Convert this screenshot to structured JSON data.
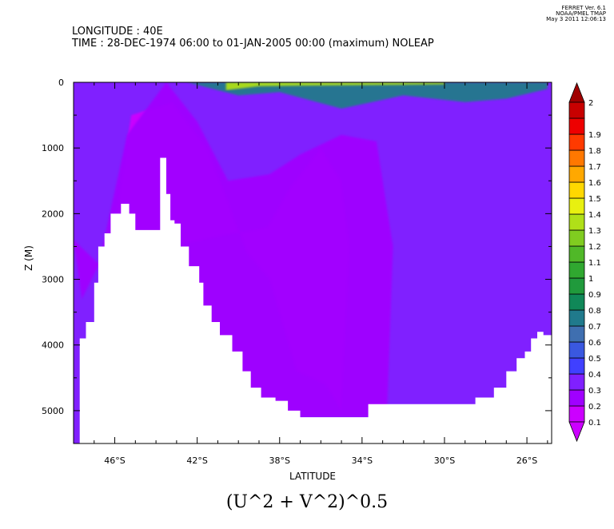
{
  "header": {
    "longitude": "LONGITUDE : 40E",
    "time": "TIME : 28-DEC-1974 06:00 to 01-JAN-2005 00:00 (maximum) NOLEAP"
  },
  "credits": {
    "line1": "FERRET Ver. 6.1",
    "line2": "NOAA/PMEL TMAP",
    "line3": "May  3 2011 12:06:13"
  },
  "bottom_title": "(U^2 + V^2)^0.5",
  "chart_data": {
    "type": "heatmap",
    "title": "(U^2 + V^2)^0.5",
    "xlabel": "LATITUDE",
    "ylabel": "Z (M)",
    "xlim": [
      -48,
      -24.8
    ],
    "ylim": [
      5500,
      0
    ],
    "x_ticks": [
      {
        "value": -46,
        "label": "46°S"
      },
      {
        "value": -42,
        "label": "42°S"
      },
      {
        "value": -38,
        "label": "38°S"
      },
      {
        "value": -34,
        "label": "34°S"
      },
      {
        "value": -30,
        "label": "30°S"
      },
      {
        "value": -26,
        "label": "26°S"
      }
    ],
    "y_ticks": [
      {
        "value": 0,
        "label": "0"
      },
      {
        "value": 1000,
        "label": "1000"
      },
      {
        "value": 2000,
        "label": "2000"
      },
      {
        "value": 3000,
        "label": "3000"
      },
      {
        "value": 4000,
        "label": "4000"
      },
      {
        "value": 5000,
        "label": "5000"
      }
    ],
    "colorbar": {
      "levels": [
        0.1,
        0.2,
        0.3,
        0.4,
        0.5,
        0.6,
        0.7,
        0.8,
        0.9,
        1,
        1.1,
        1.2,
        1.3,
        1.4,
        1.5,
        1.6,
        1.7,
        1.8,
        1.9,
        2
      ],
      "labels": [
        "0.1",
        "0.2",
        "0.3",
        "0.4",
        "0.5",
        "0.6",
        "0.7",
        "0.8",
        "0.9",
        "1",
        "1.1",
        "1.2",
        "1.3",
        "1.4",
        "1.5",
        "1.6",
        "1.7",
        "1.8",
        "1.9",
        "2"
      ],
      "colors": [
        "#cc00ff",
        "#a000ff",
        "#8020ff",
        "#4040ff",
        "#3a58e0",
        "#3f6fb0",
        "#207a8c",
        "#108858",
        "#209a3c",
        "#30a830",
        "#50b828",
        "#80cc20",
        "#b0e018",
        "#e8f010",
        "#ffd800",
        "#ffa800",
        "#ff7800",
        "#ff3a00",
        "#ee0000",
        "#c80000"
      ],
      "under_color": "#cc00ff",
      "over_color": "#a00000"
    },
    "bathymetry": {
      "lat": [
        -48,
        -47.7,
        -47.4,
        -47.0,
        -46.8,
        -46.5,
        -46.2,
        -45.7,
        -45.3,
        -45.0,
        -44.3,
        -43.8,
        -43.5,
        -43.3,
        -43.1,
        -42.8,
        -42.4,
        -41.9,
        -41.7,
        -41.3,
        -40.9,
        -40.3,
        -39.8,
        -39.4,
        -38.9,
        -38.2,
        -37.6,
        -37.0,
        -36.3,
        -35.8,
        -35.4,
        -35.0,
        -34.5,
        -34.0,
        -33.7,
        -33.0,
        -30.0,
        -28.5,
        -27.6,
        -27.0,
        -26.5,
        -26.1,
        -25.8,
        -25.5,
        -25.2,
        -24.8
      ],
      "depth": [
        5500,
        3900,
        3650,
        3050,
        2500,
        2300,
        2000,
        1850,
        2000,
        2250,
        2250,
        1150,
        1700,
        2100,
        2150,
        2500,
        2800,
        3050,
        3400,
        3650,
        3850,
        4100,
        4400,
        4650,
        4800,
        4850,
        5000,
        5100,
        5100,
        5100,
        5100,
        5100,
        5100,
        5100,
        4900,
        4900,
        4900,
        4800,
        4650,
        4400,
        4200,
        4100,
        3900,
        3800,
        3850,
        5500
      ]
    },
    "field_layers": [
      {
        "level": 0.15,
        "description": "deep magenta core",
        "lat": [
          -46.3,
          -45.2,
          -43.2,
          -41.5,
          -40.5,
          -39.6,
          -38.5,
          -37.2,
          -35.8,
          -35.0,
          -34.6,
          -35.0,
          -36.0,
          -37.5,
          -38.6
        ],
        "depth": [
          2700,
          500,
          300,
          1000,
          1800,
          2600,
          3000,
          4400,
          4600,
          5000,
          2500,
          1500,
          1000,
          1600,
          2200
        ]
      },
      {
        "level": 0.25,
        "description": "violet band",
        "lat": [
          -48,
          -47.6,
          -46.8,
          -45.4,
          -43.5,
          -42.0,
          -40.5,
          -38.5,
          -37.0,
          -35.0,
          -33.3,
          -32.5,
          -32.8,
          -33.5,
          -34.6,
          -36.5,
          -39.0
        ],
        "depth": [
          2400,
          3300,
          2800,
          800,
          0,
          600,
          1500,
          1400,
          1100,
          800,
          900,
          2500,
          5100,
          5100,
          5100,
          5100,
          5100
        ]
      },
      {
        "level": 0.35,
        "description": "blue background",
        "lat": [
          -30.5,
          -24.8
        ],
        "depth": [
          0,
          5500
        ]
      },
      {
        "level": 0.7,
        "description": "green surface jet",
        "lat": [
          -42.5,
          -40.0,
          -38.0,
          -35.0,
          -32.0,
          -29.0,
          -27.0,
          -25.0
        ],
        "depth": [
          0,
          200,
          150,
          400,
          200,
          300,
          250,
          100
        ]
      },
      {
        "level": 1.3,
        "description": "yellow surface maxima",
        "lat": [
          -40.6,
          -39.0,
          -37.0,
          -33.0,
          -30.0
        ],
        "depth": [
          120,
          60,
          50,
          40,
          30
        ]
      }
    ]
  }
}
